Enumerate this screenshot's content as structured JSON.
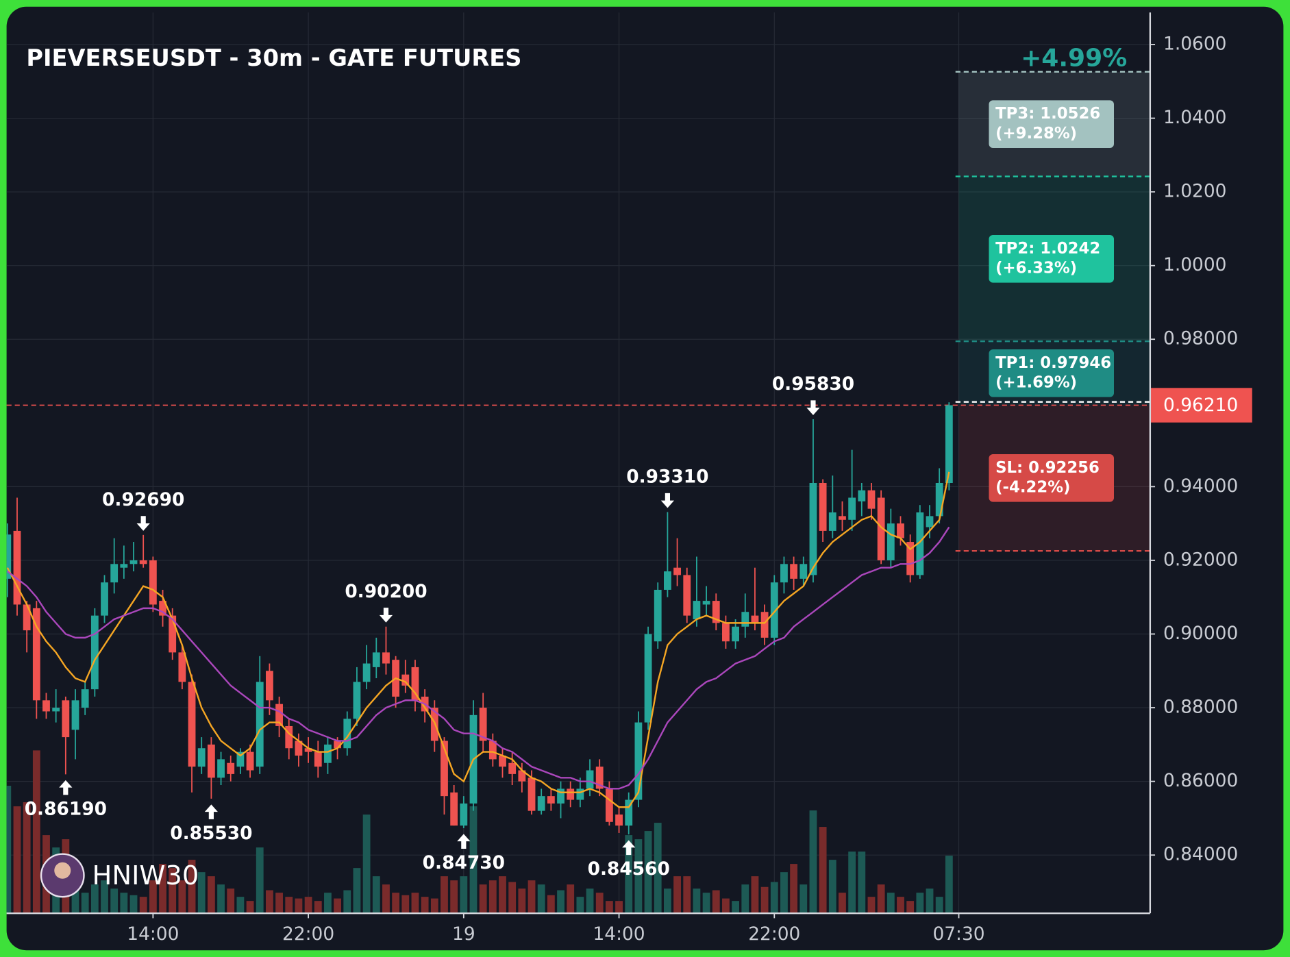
{
  "chart_data": {
    "type": "candlestick",
    "title": "PIEVERSEUSDT - 30m - GATE FUTURES",
    "watermark": "HNIW30",
    "move_label": "+4.99%",
    "categories": [
      null,
      null,
      null,
      null,
      null,
      null,
      null,
      null,
      null,
      null,
      null,
      null,
      null,
      null,
      null,
      "14:00",
      null,
      null,
      null,
      null,
      null,
      null,
      null,
      null,
      null,
      null,
      null,
      null,
      null,
      null,
      null,
      "22:00",
      null,
      null,
      null,
      null,
      null,
      null,
      null,
      null,
      null,
      null,
      null,
      null,
      null,
      null,
      null,
      "19",
      null,
      null,
      null,
      null,
      null,
      null,
      null,
      null,
      null,
      null,
      null,
      null,
      null,
      null,
      null,
      "14:00",
      null,
      null,
      null,
      null,
      null,
      null,
      null,
      null,
      null,
      null,
      null,
      null,
      null,
      null,
      null,
      "22:00",
      null,
      null,
      null,
      null,
      null,
      null,
      null,
      null,
      null,
      null,
      null,
      null,
      null,
      null,
      null,
      null,
      null,
      null,
      "07:30"
    ],
    "open": [
      0.915,
      0.928,
      0.908,
      0.907,
      0.882,
      0.879,
      0.882,
      0.874,
      0.88,
      0.885,
      0.905,
      0.914,
      0.918,
      0.919,
      0.92,
      0.92,
      0.909,
      0.905,
      0.895,
      0.887,
      0.864,
      0.87,
      0.861,
      0.865,
      0.864,
      0.868,
      0.864,
      0.89,
      0.881,
      0.875,
      0.871,
      0.869,
      0.868,
      0.865,
      0.871,
      0.869,
      0.877,
      0.887,
      0.891,
      0.895,
      0.893,
      0.889,
      0.891,
      0.883,
      0.88,
      0.871,
      0.857,
      0.848,
      0.854,
      0.88,
      0.871,
      0.867,
      0.865,
      0.863,
      0.861,
      0.852,
      0.856,
      0.854,
      0.858,
      0.855,
      0.858,
      0.864,
      0.858,
      0.851,
      0.848,
      0.855,
      0.876,
      0.898,
      0.912,
      0.918,
      0.916,
      0.904,
      0.908,
      0.909,
      0.903,
      0.898,
      0.902,
      0.905,
      0.906,
      0.899,
      0.914,
      0.919,
      0.915,
      0.916,
      0.941,
      0.928,
      0.932,
      0.931,
      0.936,
      0.939,
      0.937,
      0.92,
      0.93,
      0.925,
      0.916,
      0.929,
      0.932,
      0.941,
      null
    ],
    "high": [
      0.93,
      0.937,
      0.909,
      0.909,
      0.884,
      0.885,
      0.883,
      0.885,
      0.887,
      0.907,
      0.916,
      0.926,
      0.924,
      0.925,
      0.9269,
      0.921,
      0.912,
      0.907,
      0.897,
      0.889,
      0.872,
      0.872,
      0.868,
      0.867,
      0.869,
      0.87,
      0.894,
      0.892,
      0.883,
      0.877,
      0.873,
      0.872,
      0.871,
      0.872,
      0.872,
      0.879,
      0.891,
      0.897,
      0.899,
      0.902,
      0.894,
      0.893,
      0.893,
      0.885,
      0.882,
      0.872,
      0.859,
      0.856,
      0.882,
      0.884,
      0.873,
      0.869,
      0.868,
      0.865,
      0.863,
      0.858,
      0.858,
      0.86,
      0.86,
      0.861,
      0.866,
      0.866,
      0.86,
      0.853,
      0.857,
      0.879,
      0.902,
      0.914,
      0.9331,
      0.926,
      0.918,
      0.921,
      0.913,
      0.911,
      0.905,
      0.904,
      0.911,
      0.918,
      0.908,
      0.916,
      0.921,
      0.921,
      0.921,
      0.9583,
      0.942,
      0.943,
      0.936,
      0.95,
      0.941,
      0.941,
      0.939,
      0.934,
      0.932,
      0.927,
      0.935,
      0.935,
      0.945,
      0.9629,
      null
    ],
    "low": [
      0.91,
      0.905,
      0.895,
      0.877,
      0.877,
      0.876,
      0.8619,
      0.866,
      0.878,
      0.883,
      0.903,
      0.911,
      0.915,
      0.917,
      0.918,
      0.906,
      0.902,
      0.893,
      0.885,
      0.857,
      0.862,
      0.8553,
      0.859,
      0.86,
      0.862,
      0.861,
      0.862,
      0.878,
      0.872,
      0.866,
      0.864,
      0.865,
      0.861,
      0.862,
      0.866,
      0.867,
      0.875,
      0.885,
      0.888,
      0.889,
      0.88,
      0.884,
      0.879,
      0.876,
      0.868,
      0.851,
      0.848,
      0.8473,
      0.852,
      0.868,
      0.864,
      0.861,
      0.859,
      0.857,
      0.851,
      0.851,
      0.852,
      0.85,
      0.853,
      0.853,
      0.856,
      0.856,
      0.848,
      0.846,
      0.8456,
      0.853,
      0.874,
      0.896,
      0.91,
      0.913,
      0.903,
      0.902,
      0.905,
      0.901,
      0.896,
      0.896,
      0.899,
      0.901,
      0.897,
      0.897,
      0.911,
      0.912,
      0.913,
      0.914,
      0.925,
      0.926,
      0.928,
      0.928,
      0.932,
      0.931,
      0.919,
      0.918,
      0.924,
      0.914,
      0.915,
      0.926,
      0.93,
      0.939,
      null
    ],
    "close": [
      0.927,
      0.908,
      0.901,
      0.882,
      0.879,
      0.88,
      0.872,
      0.882,
      0.885,
      0.905,
      0.914,
      0.919,
      0.919,
      0.92,
      0.919,
      0.908,
      0.905,
      0.895,
      0.887,
      0.864,
      0.869,
      0.861,
      0.866,
      0.862,
      0.868,
      0.863,
      0.887,
      0.882,
      0.875,
      0.869,
      0.867,
      0.868,
      0.864,
      0.87,
      0.869,
      0.877,
      0.887,
      0.892,
      0.895,
      0.892,
      0.883,
      0.886,
      0.882,
      0.879,
      0.871,
      0.856,
      0.848,
      0.854,
      0.878,
      0.871,
      0.866,
      0.864,
      0.862,
      0.86,
      0.852,
      0.856,
      0.854,
      0.858,
      0.855,
      0.858,
      0.863,
      0.858,
      0.849,
      0.848,
      0.855,
      0.876,
      0.9,
      0.912,
      0.917,
      0.916,
      0.905,
      0.909,
      0.909,
      0.903,
      0.898,
      0.902,
      0.906,
      0.903,
      0.899,
      0.914,
      0.919,
      0.915,
      0.919,
      0.941,
      0.928,
      0.933,
      0.931,
      0.937,
      0.939,
      0.934,
      0.92,
      0.93,
      0.926,
      0.916,
      0.933,
      0.932,
      0.941,
      0.9621,
      null
    ],
    "up_color": "#26a69a",
    "down_color": "#ef5350",
    "volume": {
      "up_color": "#1d5a55",
      "down_color": "#7a2b2b",
      "values": [
        155,
        130,
        135,
        198,
        95,
        80,
        90,
        40,
        25,
        35,
        40,
        30,
        25,
        22,
        20,
        40,
        60,
        55,
        40,
        65,
        50,
        45,
        35,
        30,
        20,
        15,
        80,
        28,
        25,
        20,
        18,
        20,
        15,
        25,
        18,
        28,
        55,
        120,
        45,
        35,
        25,
        22,
        25,
        20,
        18,
        45,
        40,
        45,
        130,
        35,
        40,
        45,
        38,
        30,
        40,
        35,
        22,
        28,
        35,
        20,
        30,
        25,
        15,
        15,
        95,
        90,
        100,
        110,
        30,
        45,
        45,
        30,
        25,
        28,
        18,
        15,
        35,
        45,
        32,
        38,
        50,
        60,
        35,
        125,
        105,
        65,
        25,
        75,
        75,
        20,
        35,
        25,
        20,
        15,
        25,
        30,
        20,
        70,
        null
      ]
    },
    "lines": [
      {
        "color": "#f5a623",
        "values": [
          0.918,
          0.913,
          0.908,
          0.902,
          0.898,
          0.895,
          0.891,
          0.888,
          0.887,
          0.893,
          0.897,
          0.901,
          0.905,
          0.909,
          0.913,
          0.912,
          0.91,
          0.904,
          0.897,
          0.888,
          0.88,
          0.875,
          0.871,
          0.869,
          0.867,
          0.869,
          0.874,
          0.876,
          0.876,
          0.873,
          0.871,
          0.869,
          0.868,
          0.868,
          0.869,
          0.872,
          0.876,
          0.88,
          0.883,
          0.886,
          0.888,
          0.887,
          0.884,
          0.88,
          0.876,
          0.869,
          0.862,
          0.86,
          0.866,
          0.868,
          0.868,
          0.867,
          0.866,
          0.863,
          0.861,
          0.86,
          0.858,
          0.857,
          0.857,
          0.857,
          0.858,
          0.857,
          0.855,
          0.853,
          0.853,
          0.857,
          0.872,
          0.887,
          0.897,
          0.9,
          0.902,
          0.904,
          0.905,
          0.904,
          0.903,
          0.903,
          0.903,
          0.903,
          0.903,
          0.906,
          0.909,
          0.911,
          0.913,
          0.918,
          0.922,
          0.925,
          0.927,
          0.929,
          0.931,
          0.932,
          0.929,
          0.927,
          0.926,
          0.923,
          0.925,
          0.928,
          0.931,
          0.944,
          null
        ]
      },
      {
        "color": "#ab47bc",
        "values": [
          0.917,
          0.915,
          0.913,
          0.91,
          0.906,
          0.903,
          0.9,
          0.899,
          0.899,
          0.9,
          0.902,
          0.904,
          0.905,
          0.906,
          0.907,
          0.907,
          0.906,
          0.904,
          0.901,
          0.898,
          0.895,
          0.892,
          0.889,
          0.886,
          0.884,
          0.882,
          0.88,
          0.88,
          0.879,
          0.877,
          0.876,
          0.874,
          0.873,
          0.872,
          0.871,
          0.871,
          0.872,
          0.875,
          0.878,
          0.88,
          0.881,
          0.882,
          0.882,
          0.881,
          0.879,
          0.877,
          0.874,
          0.873,
          0.873,
          0.872,
          0.871,
          0.869,
          0.868,
          0.866,
          0.864,
          0.863,
          0.862,
          0.861,
          0.861,
          0.86,
          0.86,
          0.859,
          0.858,
          0.858,
          0.859,
          0.862,
          0.866,
          0.871,
          0.876,
          0.879,
          0.882,
          0.885,
          0.887,
          0.888,
          0.89,
          0.892,
          0.893,
          0.894,
          0.896,
          0.898,
          0.899,
          0.902,
          0.904,
          0.906,
          0.908,
          0.91,
          0.912,
          0.914,
          0.916,
          0.917,
          0.918,
          0.918,
          0.919,
          0.919,
          0.92,
          0.922,
          0.925,
          0.929,
          null
        ]
      }
    ],
    "ylim": [
      0.8242,
      1.0687
    ],
    "yticks": [
      {
        "value": 1.06,
        "label": "1.0600"
      },
      {
        "value": 1.04,
        "label": "1.0400"
      },
      {
        "value": 1.02,
        "label": "1.0200"
      },
      {
        "value": 1.0,
        "label": "1.0000"
      },
      {
        "value": 0.98,
        "label": "0.98000"
      },
      {
        "value": 0.94,
        "label": "0.94000"
      },
      {
        "value": 0.92,
        "label": "0.92000"
      },
      {
        "value": 0.9,
        "label": "0.90000"
      },
      {
        "value": 0.88,
        "label": "0.88000"
      },
      {
        "value": 0.86,
        "label": "0.86000"
      },
      {
        "value": 0.84,
        "label": "0.84000"
      }
    ],
    "grid": true,
    "annotations": [
      {
        "label": "0.92690",
        "value": 0.9269,
        "index": 14,
        "position": "above"
      },
      {
        "label": "0.90200",
        "value": 0.902,
        "index": 39,
        "position": "above"
      },
      {
        "label": "0.93310",
        "value": 0.9331,
        "index": 68,
        "position": "above"
      },
      {
        "label": "0.95830",
        "value": 0.9583,
        "index": 83,
        "position": "above"
      },
      {
        "label": "0.86190",
        "value": 0.8619,
        "index": 6,
        "position": "below"
      },
      {
        "label": "0.85530",
        "value": 0.8553,
        "index": 21,
        "position": "below"
      },
      {
        "label": "0.84730",
        "value": 0.8473,
        "index": 47,
        "position": "below"
      },
      {
        "label": "0.84560",
        "value": 0.8456,
        "index": 64,
        "position": "below"
      }
    ],
    "entry": {
      "label": "0.96210",
      "value": 0.9621,
      "color": "#ef5350"
    },
    "levels": [
      {
        "label": "TP3: 1.0526",
        "change": "(+9.28%)",
        "value": 1.0526,
        "color": "#a3c2c0"
      },
      {
        "label": "TP2: 1.0242",
        "change": "(+6.33%)",
        "value": 1.0242,
        "color": "#1fc39e"
      },
      {
        "label": "TP1: 0.97946",
        "change": "(+1.69%)",
        "value": 0.97946,
        "color": "#1f8c84"
      },
      {
        "label": "SL: 0.92256",
        "change": "(-4.22%)",
        "value": 0.92256,
        "color": "#d64a47"
      }
    ]
  }
}
